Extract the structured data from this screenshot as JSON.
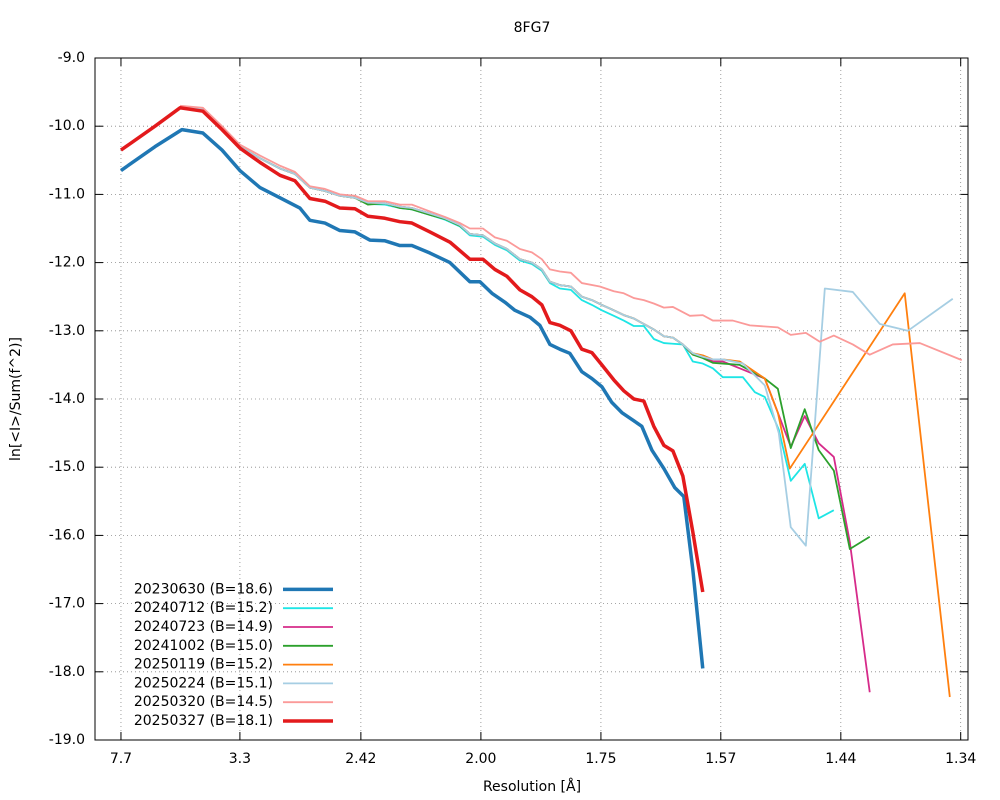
{
  "chart_data": {
    "type": "line",
    "title": "8FG7",
    "x_label": "Resolution [Å]",
    "y_label": "ln[<I>/Sum(f^2)]",
    "xlim": [
      0,
      0.5615
    ],
    "ylim": [
      -19,
      -9
    ],
    "xticks": [
      {
        "value": 0.0167,
        "label": "7.7"
      },
      {
        "value": 0.0932,
        "label": "3.3"
      },
      {
        "value": 0.171,
        "label": "2.42"
      },
      {
        "value": 0.2482,
        "label": "2.00"
      },
      {
        "value": 0.3254,
        "label": "1.75"
      },
      {
        "value": 0.4025,
        "label": "1.57"
      },
      {
        "value": 0.4797,
        "label": "1.44"
      },
      {
        "value": 0.5568,
        "label": "1.34"
      }
    ],
    "yticks": [
      {
        "value": -9,
        "label": "-9.0"
      },
      {
        "value": -10,
        "label": "-10.0"
      },
      {
        "value": -11,
        "label": "-11.0"
      },
      {
        "value": -12,
        "label": "-12.0"
      },
      {
        "value": -13,
        "label": "-13.0"
      },
      {
        "value": -14,
        "label": "-14.0"
      },
      {
        "value": -15,
        "label": "-15.0"
      },
      {
        "value": -16,
        "label": "-16.0"
      },
      {
        "value": -17,
        "label": "-17.0"
      },
      {
        "value": -18,
        "label": "-18.0"
      },
      {
        "value": -19,
        "label": "-19.0"
      }
    ],
    "grid": true,
    "legend": "bottom-left",
    "series": [
      {
        "name": "20230630 (B=18.6)",
        "color": "#1f77b4",
        "line_width": 3.5,
        "x": [
          0.0167,
          0.0386,
          0.0559,
          0.0694,
          0.0817,
          0.0932,
          0.1061,
          0.119,
          0.1318,
          0.1382,
          0.1479,
          0.1575,
          0.1672,
          0.1768,
          0.1865,
          0.1961,
          0.2038,
          0.2154,
          0.2283,
          0.2411,
          0.2476,
          0.2553,
          0.2636,
          0.2701,
          0.2797,
          0.2861,
          0.2926,
          0.299,
          0.3054,
          0.3131,
          0.3196,
          0.326,
          0.3324,
          0.3389,
          0.3453,
          0.3517,
          0.3582,
          0.3659,
          0.3729,
          0.3787,
          0.3845,
          0.3909
        ],
        "values": [
          -10.65,
          -10.3,
          -10.05,
          -10.1,
          -10.35,
          -10.65,
          -10.9,
          -11.05,
          -11.2,
          -11.38,
          -11.42,
          -11.53,
          -11.55,
          -11.67,
          -11.68,
          -11.75,
          -11.75,
          -11.86,
          -12.0,
          -12.28,
          -12.28,
          -12.45,
          -12.58,
          -12.7,
          -12.8,
          -12.92,
          -13.2,
          -13.27,
          -13.33,
          -13.6,
          -13.7,
          -13.82,
          -14.05,
          -14.2,
          -14.3,
          -14.4,
          -14.75,
          -15.02,
          -15.3,
          -15.43,
          -16.5,
          -17.95
        ]
      },
      {
        "name": "20240712 (B=15.2)",
        "color": "#1ee5e5",
        "line_width": 1.8,
        "x": [
          0.0547,
          0.0694,
          0.0817,
          0.0932,
          0.1061,
          0.119,
          0.1286,
          0.1382,
          0.1479,
          0.1575,
          0.1672,
          0.1755,
          0.1865,
          0.1961,
          0.2038,
          0.2154,
          0.2251,
          0.2347,
          0.2411,
          0.2495,
          0.2572,
          0.2649,
          0.2733,
          0.281,
          0.2874,
          0.2926,
          0.299,
          0.3061,
          0.3131,
          0.3196,
          0.326,
          0.3337,
          0.3401,
          0.3466,
          0.353,
          0.3594,
          0.3659,
          0.3717,
          0.3781,
          0.3845,
          0.3909,
          0.3974,
          0.4038,
          0.4167,
          0.4244,
          0.4308,
          0.4398,
          0.4475,
          0.4565,
          0.4655,
          0.4752
        ],
        "values": [
          -9.72,
          -9.75,
          -10.03,
          -10.3,
          -10.47,
          -10.62,
          -10.7,
          -10.9,
          -10.95,
          -11.02,
          -11.05,
          -11.14,
          -11.15,
          -11.2,
          -11.22,
          -11.3,
          -11.37,
          -11.47,
          -11.6,
          -11.62,
          -11.74,
          -11.82,
          -11.97,
          -12.02,
          -12.12,
          -12.3,
          -12.38,
          -12.4,
          -12.55,
          -12.62,
          -12.7,
          -12.78,
          -12.85,
          -12.93,
          -12.93,
          -13.12,
          -13.18,
          -13.19,
          -13.2,
          -13.45,
          -13.48,
          -13.55,
          -13.68,
          -13.68,
          -13.9,
          -13.97,
          -14.45,
          -15.2,
          -14.95,
          -15.75,
          -15.63
        ]
      },
      {
        "name": "20240723 (B=14.9)",
        "color": "#d62b8a",
        "line_width": 1.8,
        "x": [
          0.0547,
          0.0694,
          0.0817,
          0.0932,
          0.1061,
          0.119,
          0.1286,
          0.1382,
          0.1479,
          0.1575,
          0.1672,
          0.1755,
          0.1865,
          0.1961,
          0.2038,
          0.2154,
          0.2251,
          0.2347,
          0.2411,
          0.2495,
          0.2572,
          0.2649,
          0.2733,
          0.281,
          0.2874,
          0.2926,
          0.299,
          0.3061,
          0.3131,
          0.3196,
          0.326,
          0.3337,
          0.3401,
          0.3466,
          0.353,
          0.3594,
          0.3659,
          0.3717,
          0.3781,
          0.3845,
          0.3909,
          0.3974,
          0.4038,
          0.4147,
          0.4308,
          0.4392,
          0.4475,
          0.4565,
          0.4655,
          0.4752,
          0.4855,
          0.4983
        ],
        "values": [
          -9.72,
          -9.75,
          -10.03,
          -10.3,
          -10.47,
          -10.62,
          -10.7,
          -10.9,
          -10.95,
          -11.02,
          -11.05,
          -11.12,
          -11.13,
          -11.18,
          -11.2,
          -11.28,
          -11.35,
          -11.45,
          -11.58,
          -11.6,
          -11.72,
          -11.8,
          -11.95,
          -12.0,
          -12.1,
          -12.28,
          -12.33,
          -12.35,
          -12.5,
          -12.55,
          -12.62,
          -12.7,
          -12.77,
          -12.82,
          -12.9,
          -12.98,
          -13.08,
          -13.1,
          -13.2,
          -13.35,
          -13.38,
          -13.45,
          -13.45,
          -13.55,
          -13.7,
          -14.2,
          -14.7,
          -14.25,
          -14.65,
          -14.85,
          -16.1,
          -18.3
        ]
      },
      {
        "name": "20241002 (B=15.0)",
        "color": "#2ca02c",
        "line_width": 1.8,
        "x": [
          0.0547,
          0.0694,
          0.0817,
          0.0932,
          0.1061,
          0.119,
          0.1286,
          0.1382,
          0.1479,
          0.1575,
          0.1672,
          0.1755,
          0.1865,
          0.1961,
          0.2038,
          0.2154,
          0.2251,
          0.2347,
          0.2411,
          0.2495,
          0.2572,
          0.2649,
          0.2733,
          0.281,
          0.2874,
          0.2926,
          0.299,
          0.3061,
          0.3131,
          0.3196,
          0.326,
          0.3337,
          0.3401,
          0.3466,
          0.353,
          0.3594,
          0.3659,
          0.3717,
          0.3781,
          0.3845,
          0.3909,
          0.3974,
          0.4038,
          0.4147,
          0.4308,
          0.4392,
          0.4475,
          0.4565,
          0.4655,
          0.4752,
          0.4855,
          0.4983
        ],
        "values": [
          -9.72,
          -9.75,
          -10.03,
          -10.3,
          -10.47,
          -10.62,
          -10.7,
          -10.9,
          -10.95,
          -11.02,
          -11.05,
          -11.15,
          -11.13,
          -11.2,
          -11.22,
          -11.3,
          -11.36,
          -11.46,
          -11.58,
          -11.6,
          -11.72,
          -11.8,
          -11.95,
          -12.0,
          -12.1,
          -12.28,
          -12.33,
          -12.35,
          -12.5,
          -12.55,
          -12.62,
          -12.7,
          -12.77,
          -12.82,
          -12.9,
          -12.98,
          -13.08,
          -13.1,
          -13.2,
          -13.35,
          -13.4,
          -13.47,
          -13.48,
          -13.5,
          -13.7,
          -13.85,
          -14.72,
          -14.15,
          -14.75,
          -15.05,
          -16.2,
          -16.02
        ]
      },
      {
        "name": "20250119 (B=15.2)",
        "color": "#ff7f0e",
        "line_width": 1.8,
        "x": [
          0.0547,
          0.0694,
          0.0817,
          0.0932,
          0.1061,
          0.119,
          0.1286,
          0.1382,
          0.1479,
          0.1575,
          0.1672,
          0.1755,
          0.1865,
          0.1961,
          0.2038,
          0.2154,
          0.2251,
          0.2347,
          0.2411,
          0.2495,
          0.2572,
          0.2649,
          0.2733,
          0.281,
          0.2874,
          0.2926,
          0.299,
          0.3061,
          0.3131,
          0.3196,
          0.326,
          0.3337,
          0.3401,
          0.3466,
          0.353,
          0.3594,
          0.3659,
          0.3717,
          0.3781,
          0.3845,
          0.3909,
          0.3974,
          0.4038,
          0.4147,
          0.4308,
          0.4392,
          0.4469,
          0.5208,
          0.5498
        ],
        "values": [
          -9.72,
          -9.75,
          -10.03,
          -10.3,
          -10.47,
          -10.62,
          -10.7,
          -10.9,
          -10.95,
          -11.02,
          -11.05,
          -11.12,
          -11.13,
          -11.18,
          -11.2,
          -11.28,
          -11.35,
          -11.45,
          -11.58,
          -11.6,
          -11.72,
          -11.8,
          -11.95,
          -12.0,
          -12.1,
          -12.28,
          -12.33,
          -12.35,
          -12.5,
          -12.55,
          -12.62,
          -12.7,
          -12.77,
          -12.82,
          -12.9,
          -12.98,
          -13.08,
          -13.1,
          -13.2,
          -13.33,
          -13.36,
          -13.42,
          -13.42,
          -13.45,
          -13.7,
          -14.2,
          -15.02,
          -12.45,
          -18.37
        ]
      },
      {
        "name": "20250224 (B=15.1)",
        "color": "#a6cee3",
        "line_width": 1.8,
        "x": [
          0.0547,
          0.0694,
          0.0817,
          0.0932,
          0.1061,
          0.119,
          0.1286,
          0.1382,
          0.1479,
          0.1575,
          0.1672,
          0.1755,
          0.1865,
          0.1961,
          0.2038,
          0.2154,
          0.2251,
          0.2347,
          0.2411,
          0.2495,
          0.2572,
          0.2649,
          0.2733,
          0.281,
          0.2874,
          0.2926,
          0.299,
          0.3061,
          0.3131,
          0.3196,
          0.326,
          0.3337,
          0.3401,
          0.3466,
          0.353,
          0.3594,
          0.3659,
          0.3717,
          0.3781,
          0.3845,
          0.3909,
          0.3974,
          0.4038,
          0.4167,
          0.4308,
          0.4398,
          0.4475,
          0.4572,
          0.4694,
          0.4874,
          0.5048,
          0.5228,
          0.5517
        ],
        "values": [
          -9.72,
          -9.75,
          -10.03,
          -10.3,
          -10.47,
          -10.62,
          -10.7,
          -10.9,
          -10.95,
          -11.02,
          -11.05,
          -11.12,
          -11.13,
          -11.18,
          -11.2,
          -11.28,
          -11.35,
          -11.45,
          -11.58,
          -11.6,
          -11.72,
          -11.8,
          -11.95,
          -12.0,
          -12.1,
          -12.28,
          -12.33,
          -12.35,
          -12.5,
          -12.55,
          -12.62,
          -12.7,
          -12.77,
          -12.82,
          -12.9,
          -12.98,
          -13.08,
          -13.1,
          -13.2,
          -13.33,
          -13.38,
          -13.42,
          -13.42,
          -13.48,
          -13.8,
          -14.5,
          -15.88,
          -16.15,
          -12.38,
          -12.43,
          -12.9,
          -13.0,
          -12.53
        ]
      },
      {
        "name": "20250320 (B=14.5)",
        "color": "#fb9a99",
        "line_width": 1.8,
        "x": [
          0.0547,
          0.0694,
          0.0817,
          0.0932,
          0.1061,
          0.119,
          0.1286,
          0.1382,
          0.1479,
          0.1575,
          0.1672,
          0.1755,
          0.1865,
          0.1961,
          0.2038,
          0.2154,
          0.2251,
          0.2347,
          0.2411,
          0.2495,
          0.2572,
          0.2649,
          0.2733,
          0.281,
          0.2874,
          0.2926,
          0.299,
          0.3061,
          0.3131,
          0.3247,
          0.3337,
          0.3401,
          0.3466,
          0.353,
          0.3594,
          0.3659,
          0.3717,
          0.3826,
          0.3909,
          0.3974,
          0.4102,
          0.4212,
          0.4392,
          0.4475,
          0.4572,
          0.4662,
          0.4752,
          0.4874,
          0.4983,
          0.5131,
          0.5305,
          0.5575
        ],
        "values": [
          -9.7,
          -9.73,
          -10.0,
          -10.27,
          -10.43,
          -10.58,
          -10.67,
          -10.88,
          -10.92,
          -11.0,
          -11.02,
          -11.1,
          -11.1,
          -11.15,
          -11.15,
          -11.25,
          -11.33,
          -11.42,
          -11.5,
          -11.5,
          -11.63,
          -11.68,
          -11.8,
          -11.85,
          -11.95,
          -12.1,
          -12.13,
          -12.15,
          -12.3,
          -12.35,
          -12.42,
          -12.45,
          -12.52,
          -12.55,
          -12.6,
          -12.66,
          -12.65,
          -12.78,
          -12.77,
          -12.85,
          -12.85,
          -12.92,
          -12.95,
          -13.06,
          -13.03,
          -13.16,
          -13.07,
          -13.2,
          -13.35,
          -13.2,
          -13.18,
          -13.43
        ]
      },
      {
        "name": "20250327 (B=18.1)",
        "color": "#e31a1c",
        "line_width": 3.5,
        "x": [
          0.0167,
          0.0386,
          0.0547,
          0.0694,
          0.0817,
          0.0932,
          0.1061,
          0.119,
          0.1286,
          0.1382,
          0.1479,
          0.1575,
          0.1672,
          0.1755,
          0.1865,
          0.1961,
          0.2038,
          0.2154,
          0.2283,
          0.2411,
          0.2495,
          0.2572,
          0.2649,
          0.2733,
          0.281,
          0.2874,
          0.2926,
          0.299,
          0.3061,
          0.3131,
          0.3196,
          0.326,
          0.3337,
          0.3401,
          0.3466,
          0.353,
          0.3594,
          0.3659,
          0.3717,
          0.3781,
          0.3845,
          0.3909
        ],
        "values": [
          -10.35,
          -10.0,
          -9.73,
          -9.78,
          -10.05,
          -10.32,
          -10.53,
          -10.72,
          -10.8,
          -11.06,
          -11.1,
          -11.2,
          -11.21,
          -11.32,
          -11.35,
          -11.4,
          -11.42,
          -11.55,
          -11.7,
          -11.95,
          -11.95,
          -12.1,
          -12.2,
          -12.4,
          -12.5,
          -12.62,
          -12.88,
          -12.92,
          -13.0,
          -13.27,
          -13.32,
          -13.5,
          -13.72,
          -13.88,
          -14.0,
          -14.03,
          -14.4,
          -14.68,
          -14.76,
          -15.13,
          -15.95,
          -16.83
        ]
      }
    ]
  }
}
